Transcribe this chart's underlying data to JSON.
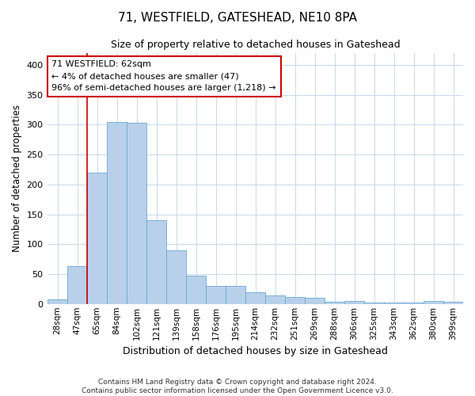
{
  "title": "71, WESTFIELD, GATESHEAD, NE10 8PA",
  "subtitle": "Size of property relative to detached houses in Gateshead",
  "xlabel": "Distribution of detached houses by size in Gateshead",
  "ylabel": "Number of detached properties",
  "bar_color": "#b8d0ea",
  "bar_edge_color": "#6aaad4",
  "background_color": "#ffffff",
  "grid_color": "#c8d8ea",
  "categories": [
    "28sqm",
    "47sqm",
    "65sqm",
    "84sqm",
    "102sqm",
    "121sqm",
    "139sqm",
    "158sqm",
    "176sqm",
    "195sqm",
    "214sqm",
    "232sqm",
    "251sqm",
    "269sqm",
    "288sqm",
    "306sqm",
    "325sqm",
    "343sqm",
    "362sqm",
    "380sqm",
    "399sqm"
  ],
  "values": [
    8,
    63,
    220,
    305,
    303,
    140,
    90,
    47,
    30,
    30,
    19,
    14,
    11,
    10,
    4,
    5,
    3,
    3,
    2,
    5,
    4
  ],
  "ylim": [
    0,
    420
  ],
  "yticks": [
    0,
    50,
    100,
    150,
    200,
    250,
    300,
    350,
    400
  ],
  "annotation_text": "71 WESTFIELD: 62sqm\n← 4% of detached houses are smaller (47)\n96% of semi-detached houses are larger (1,218) →",
  "annotation_box_color": "#ffffff",
  "annotation_box_edge_color": "#cc0000",
  "property_line_x": 2.0,
  "footer_line1": "Contains HM Land Registry data © Crown copyright and database right 2024.",
  "footer_line2": "Contains public sector information licensed under the Open Government Licence v3.0."
}
